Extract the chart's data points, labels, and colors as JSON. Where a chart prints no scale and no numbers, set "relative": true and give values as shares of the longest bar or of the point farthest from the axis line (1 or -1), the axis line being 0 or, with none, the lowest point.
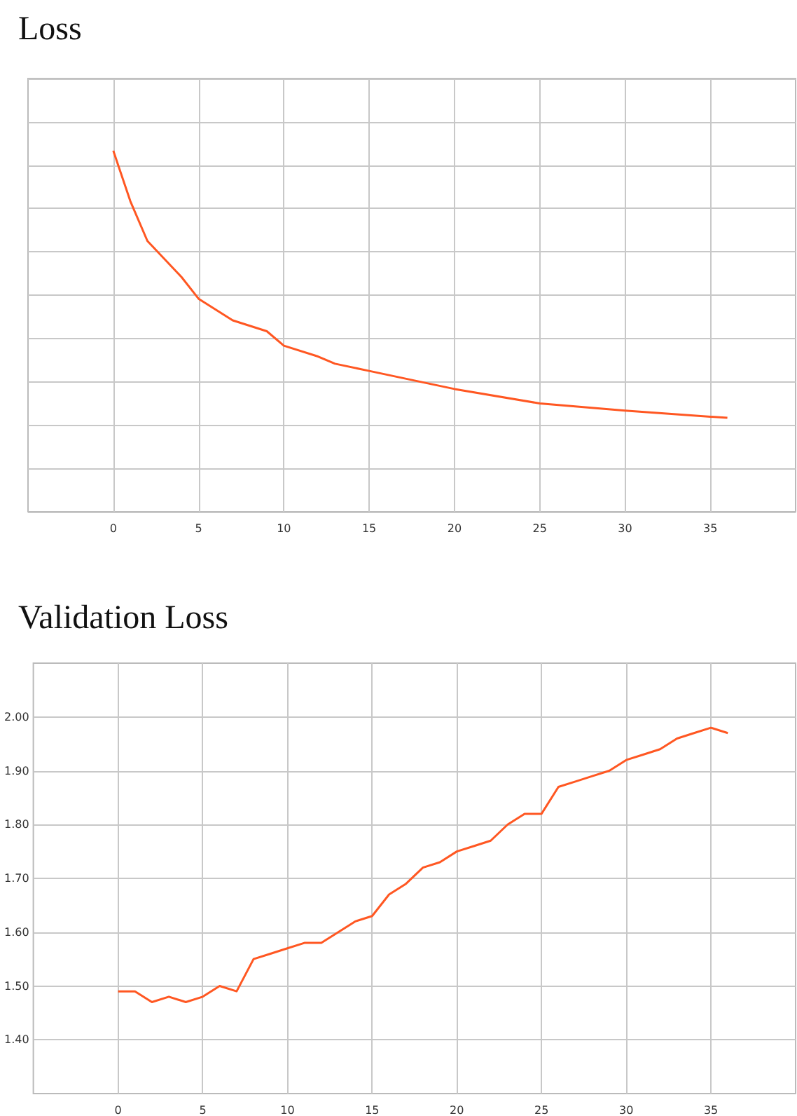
{
  "chart_data": [
    {
      "type": "line",
      "title": "Loss",
      "relative": true,
      "grid": true,
      "xlim": [
        -5,
        40
      ],
      "xticks": [
        0,
        5,
        10,
        15,
        20,
        25,
        30,
        35
      ],
      "series": [
        {
          "color": "#ff5722",
          "x": [
            0,
            1,
            2,
            4,
            5,
            7,
            9,
            10,
            12,
            13,
            15,
            18,
            20,
            25,
            30,
            36
          ],
          "values": [
            1,
            0.86,
            0.75,
            0.65,
            0.59,
            0.53,
            0.5,
            0.46,
            0.43,
            0.41,
            0.39,
            0.36,
            0.34,
            0.3,
            0.28,
            0.26
          ]
        }
      ]
    },
    {
      "type": "line",
      "title": "Validation Loss",
      "grid": true,
      "xlim": [
        -5,
        40
      ],
      "xticks": [
        0,
        5,
        10,
        15,
        20,
        25,
        30,
        35
      ],
      "ylim": [
        1.3,
        2.1
      ],
      "yticks": [
        {
          "value": 1.4,
          "label": "1.40"
        },
        {
          "value": 1.5,
          "label": "1.50"
        },
        {
          "value": 1.6,
          "label": "1.60"
        },
        {
          "value": 1.7,
          "label": "1.70"
        },
        {
          "value": 1.8,
          "label": "1.80"
        },
        {
          "value": 1.9,
          "label": "1.90"
        },
        {
          "value": 2.0,
          "label": "2.00"
        }
      ],
      "series": [
        {
          "color": "#ff5722",
          "x": [
            0,
            1,
            2,
            3,
            4,
            5,
            6,
            7,
            8,
            9,
            10,
            11,
            12,
            13,
            14,
            15,
            16,
            17,
            18,
            19,
            20,
            21,
            22,
            23,
            24,
            25,
            26,
            27,
            28,
            29,
            30,
            31,
            32,
            33,
            34,
            35,
            36
          ],
          "values": [
            1.49,
            1.49,
            1.47,
            1.48,
            1.47,
            1.48,
            1.5,
            1.49,
            1.55,
            1.56,
            1.57,
            1.58,
            1.58,
            1.6,
            1.62,
            1.63,
            1.67,
            1.69,
            1.72,
            1.73,
            1.75,
            1.76,
            1.77,
            1.8,
            1.82,
            1.82,
            1.87,
            1.88,
            1.89,
            1.9,
            1.92,
            1.93,
            1.94,
            1.96,
            1.97,
            1.98,
            1.97
          ]
        }
      ]
    }
  ]
}
